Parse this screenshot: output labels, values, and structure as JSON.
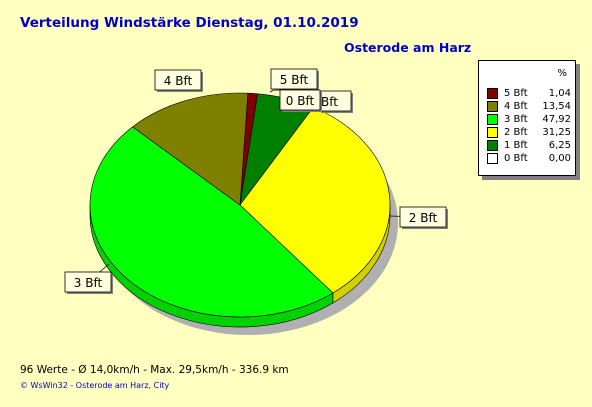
{
  "header": {
    "title": "Verteilung Windstärke  Dienstag, 01.10.2019",
    "location": "Osterode am Harz"
  },
  "legend": {
    "percent_header": "%"
  },
  "footer": {
    "stats": "96 Werte   -   Ø 14,0km/h  -  Max. 29,5km/h   -   336.9 km",
    "copyright": "© WsWin32   -   Osterode am Harz, City"
  },
  "chart_data": {
    "type": "pie",
    "title": "Verteilung Windstärke  Dienstag, 01.10.2019",
    "legend_position": "top-right",
    "slices": [
      {
        "label": "5 Bft",
        "legend_value": "1,04",
        "value": 1.04,
        "color": "#800000"
      },
      {
        "label": "4 Bft",
        "legend_value": "13,54",
        "value": 13.54,
        "color": "#808000"
      },
      {
        "label": "3 Bft",
        "legend_value": "47,92",
        "value": 47.92,
        "color": "#00ff00"
      },
      {
        "label": "2 Bft",
        "legend_value": "31,25",
        "value": 31.25,
        "color": "#ffff00"
      },
      {
        "label": "1 Bft",
        "legend_value": "6,25",
        "value": 6.25,
        "color": "#008000"
      },
      {
        "label": "0 Bft",
        "legend_value": "0,00",
        "value": 0.0,
        "color": "#ffffff"
      }
    ]
  }
}
